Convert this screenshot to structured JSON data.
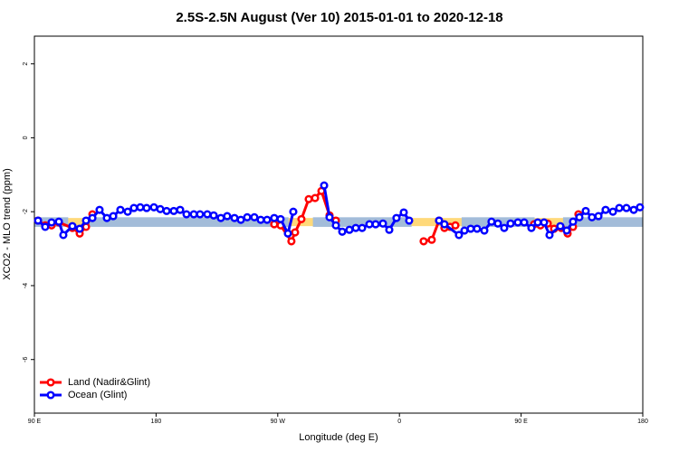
{
  "chart_data": {
    "type": "line",
    "title": "2.5S-2.5N August (Ver 10)   2015-01-01 to 2020-12-18",
    "xlabel": "Longitude (deg E)",
    "ylabel": "XCO2 - MLO trend (ppm)",
    "xlim": [
      90,
      540
    ],
    "ylim": [
      -7.45,
      2.75
    ],
    "xticks": [
      {
        "value": 90,
        "label": "90 E"
      },
      180,
      {
        "value": 270,
        "label": "90 W"
      },
      {
        "value": 360,
        "label": "0"
      },
      {
        "value": 450,
        "label": "90 E"
      },
      {
        "value": 540,
        "label": "180"
      }
    ],
    "yticks": [
      2,
      0,
      -2,
      -4,
      -6
    ],
    "grid": false,
    "legend": "bottom-left",
    "bands": [
      {
        "color": "#ffd97a",
        "ylim": [
          -2.17,
          -2.39
        ]
      },
      {
        "color": "#a3bcd9",
        "ylim": [
          -2.15,
          -2.41
        ],
        "xranges": [
          [
            90,
            115
          ],
          [
            128,
            278
          ],
          [
            296,
            369
          ],
          [
            406,
            460
          ],
          [
            481,
            540
          ]
        ]
      }
    ],
    "series": [
      {
        "name": "Land (Nadir&Glint)",
        "color": "#ff0000",
        "x": [
          92.7,
          98.0,
          102.7,
          108.1,
          118.1,
          123.5,
          128.2,
          132.9,
          null,
          267.4,
          272.1,
          280.1,
          282.8,
          287.5,
          292.9,
          297.6,
          302.3,
          308.3,
          313.0,
          null,
          377.9,
          383.9,
          389.3,
          393.3,
          397.4,
          401.4,
          null,
          459.6,
          464.3,
          469.7,
          474.4,
          479.7,
          484.4,
          488.4,
          492.4
        ],
        "values": [
          -2.24,
          -2.37,
          -2.37,
          -2.29,
          -2.44,
          -2.59,
          -2.41,
          -2.07,
          null,
          -2.34,
          -2.37,
          -2.8,
          -2.56,
          -2.2,
          -1.66,
          -1.63,
          -1.44,
          -2.1,
          -2.24,
          null,
          -2.8,
          -2.76,
          -2.24,
          -2.44,
          -2.41,
          -2.37,
          null,
          -2.34,
          -2.37,
          -2.32,
          -2.46,
          -2.44,
          -2.59,
          -2.41,
          -2.07
        ]
      },
      {
        "name": "Ocean (Glint)",
        "color": "#0000ff",
        "x": [
          92.7,
          98.0,
          102.7,
          108.1,
          111.4,
          118.1,
          123.5,
          128.2,
          132.9,
          138.2,
          143.6,
          148.3,
          153.6,
          159.0,
          163.6,
          168.3,
          173.0,
          178.4,
          183.1,
          187.8,
          193.1,
          197.8,
          202.5,
          207.9,
          212.5,
          217.9,
          222.6,
          227.9,
          232.6,
          238.0,
          242.7,
          247.4,
          252.7,
          257.4,
          262.1,
          267.4,
          272.1,
          277.5,
          281.5,
          null,
          304.3,
          308.3,
          313.0,
          317.7,
          323.0,
          327.7,
          332.4,
          337.8,
          342.4,
          347.8,
          352.5,
          357.8,
          363.2,
          367.2,
          null,
          389.3,
          393.3,
          404.0,
          408.1,
          412.7,
          417.4,
          422.8,
          428.1,
          432.8,
          437.5,
          442.2,
          447.6,
          452.3,
          457.6,
          462.3,
          467.0,
          471.0,
          479.0,
          483.7,
          488.4,
          493.1,
          497.8,
          502.4,
          507.2,
          512.5,
          517.9,
          522.6,
          527.9,
          533.3,
          537.9
        ],
        "values": [
          -2.24,
          -2.41,
          -2.29,
          -2.27,
          -2.63,
          -2.39,
          -2.46,
          -2.24,
          -2.17,
          -1.95,
          -2.17,
          -2.12,
          -1.95,
          -2.0,
          -1.9,
          -1.88,
          -1.9,
          -1.88,
          -1.93,
          -1.98,
          -1.98,
          -1.95,
          -2.07,
          -2.07,
          -2.07,
          -2.07,
          -2.1,
          -2.17,
          -2.12,
          -2.17,
          -2.22,
          -2.15,
          -2.15,
          -2.22,
          -2.22,
          -2.17,
          -2.2,
          -2.59,
          -2.0,
          null,
          -1.29,
          -2.15,
          -2.37,
          -2.54,
          -2.49,
          -2.44,
          -2.44,
          -2.34,
          -2.34,
          -2.32,
          -2.49,
          -2.17,
          -2.02,
          -2.24,
          null,
          -2.24,
          -2.34,
          -2.63,
          -2.51,
          -2.46,
          -2.46,
          -2.51,
          -2.27,
          -2.32,
          -2.44,
          -2.32,
          -2.29,
          -2.29,
          -2.44,
          -2.29,
          -2.29,
          -2.63,
          -2.39,
          -2.51,
          -2.27,
          -2.15,
          -1.98,
          -2.15,
          -2.12,
          -1.95,
          -2.0,
          -1.9,
          -1.9,
          -1.95,
          -1.88
        ]
      }
    ]
  }
}
